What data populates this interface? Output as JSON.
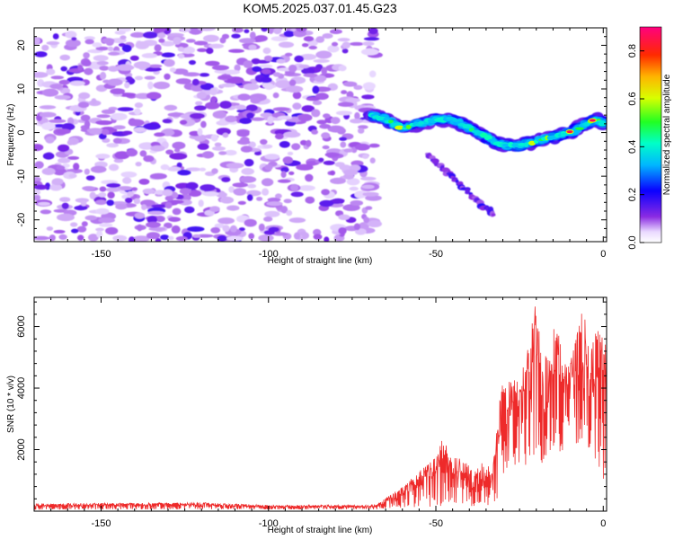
{
  "figure": {
    "title": "KOM5.2025.037.01.45.G23"
  },
  "chart_data": [
    {
      "type": "heatmap",
      "title": "KOM5.2025.037.01.45.G23",
      "xlabel": "Height of straight line (km)",
      "ylabel": "Frequency (Hz)",
      "xlim": [
        -170,
        1
      ],
      "ylim": [
        -25,
        24
      ],
      "x_ticks": [
        -150,
        -100,
        -50,
        0
      ],
      "y_ticks": [
        -20,
        -10,
        0,
        10,
        20
      ],
      "colorbar": {
        "label": "Normalized spectral amplitude",
        "range": [
          0,
          0.9
        ],
        "ticks": [
          0.0,
          0.2,
          0.4,
          0.6,
          0.8
        ],
        "colormap": "rainbow (violet-blue-cyan-green-yellow-orange-red-magenta)"
      },
      "features": [
        {
          "name": "background noise",
          "x_range": [
            -170,
            -68
          ],
          "y_range": [
            -25,
            24
          ],
          "amplitude": 0.1
        },
        {
          "name": "main trace",
          "points": [
            [
              -69,
              4
            ],
            [
              -65,
              3
            ],
            [
              -60,
              1
            ],
            [
              -55,
              2
            ],
            [
              -50,
              3
            ],
            [
              -45,
              3
            ],
            [
              -40,
              1
            ],
            [
              -35,
              -1
            ],
            [
              -30,
              -3
            ],
            [
              -25,
              -3
            ],
            [
              -20,
              -2
            ],
            [
              -15,
              -1
            ],
            [
              -10,
              0
            ],
            [
              -5,
              2
            ],
            [
              -2,
              3
            ],
            [
              0,
              2
            ]
          ],
          "peak_amplitude": 0.9
        },
        {
          "name": "secondary trace",
          "points": [
            [
              -53,
              -5
            ],
            [
              -48,
              -8
            ],
            [
              -44,
              -11
            ],
            [
              -40,
              -14
            ],
            [
              -36,
              -17
            ],
            [
              -33,
              -18.5
            ]
          ],
          "peak_amplitude": 0.2
        }
      ]
    },
    {
      "type": "line",
      "xlabel": "Height of straight line (km)",
      "ylabel": "SNR (10 * v/v)",
      "xlim": [
        -170,
        1
      ],
      "ylim": [
        0,
        6950
      ],
      "x_ticks": [
        -150,
        -100,
        -50,
        0
      ],
      "y_ticks": [
        2000,
        4000,
        6000
      ],
      "color": "#ee2a2a",
      "envelope": {
        "x": [
          -170,
          -120,
          -100,
          -75,
          -68,
          -64,
          -60,
          -57,
          -54,
          -51,
          -48,
          -45,
          -42,
          -39,
          -36,
          -33,
          -31,
          -30,
          -28,
          -26,
          -24,
          -22,
          -20,
          -18,
          -16,
          -14,
          -12,
          -10,
          -8,
          -6,
          -4,
          -2,
          0,
          1
        ],
        "low": [
          50,
          60,
          60,
          60,
          60,
          80,
          100,
          100,
          120,
          150,
          150,
          200,
          200,
          150,
          200,
          200,
          500,
          1200,
          1500,
          1500,
          1400,
          1500,
          2000,
          1500,
          2000,
          1800,
          2000,
          2500,
          2200,
          2000,
          1800,
          1500,
          1000,
          1500
        ],
        "high": [
          250,
          280,
          200,
          200,
          200,
          500,
          800,
          1100,
          1400,
          1700,
          2400,
          1800,
          1700,
          1400,
          1600,
          1400,
          3500,
          4200,
          4300,
          4500,
          4800,
          5800,
          6900,
          5200,
          5000,
          6500,
          4800,
          4900,
          5800,
          6800,
          5000,
          6100,
          5600,
          5700
        ]
      }
    }
  ]
}
